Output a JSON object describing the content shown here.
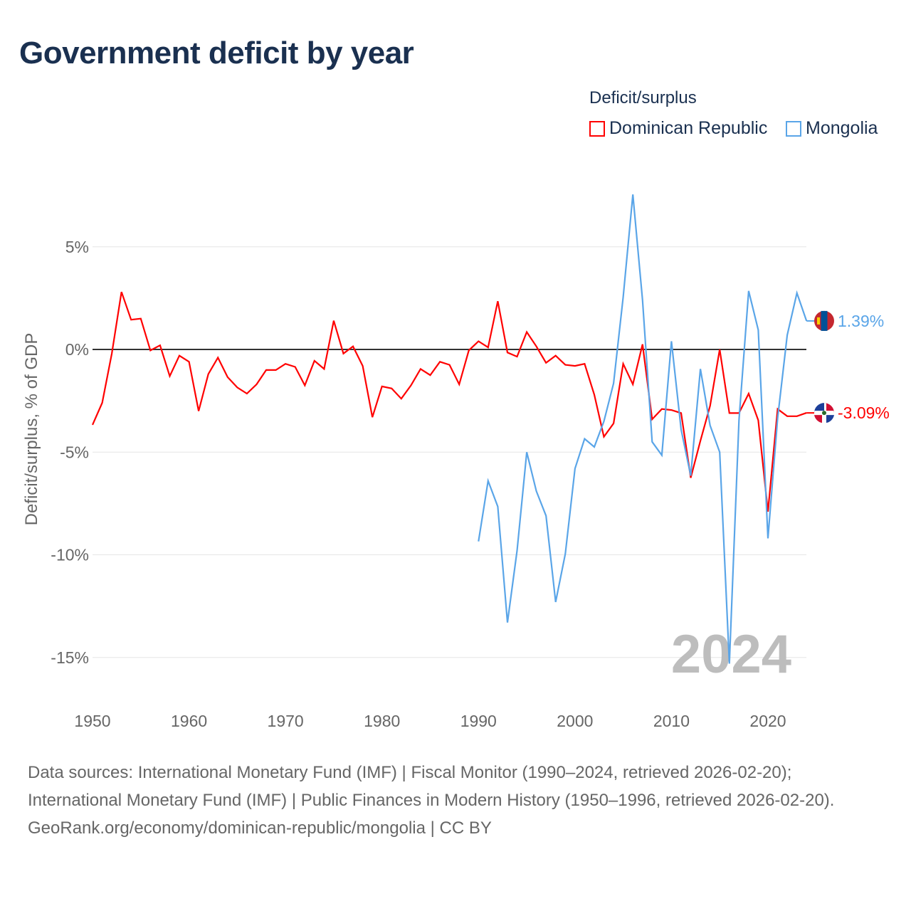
{
  "title": "Government deficit by year",
  "legend": {
    "title": "Deficit/surplus",
    "items": [
      {
        "label": "Dominican Republic",
        "color": "#ff0000"
      },
      {
        "label": "Mongolia",
        "color": "#5aa5e8"
      }
    ]
  },
  "chart_data": {
    "type": "line",
    "ylabel": "Deficit/surplus, % of GDP",
    "xlabel": "",
    "xlim": [
      1950,
      2024
    ],
    "ylim": [
      -17,
      8
    ],
    "x_ticks": [
      1950,
      1960,
      1970,
      1980,
      1990,
      2000,
      2010,
      2020
    ],
    "x_tick_labels": [
      "1950",
      "1960",
      "1970",
      "1980",
      "1990",
      "2000",
      "2010",
      "2020"
    ],
    "y_ticks": [
      5,
      0,
      -5,
      -10,
      -15
    ],
    "y_tick_labels": [
      "5%",
      "0%",
      "-5%",
      "-10%",
      "-15%"
    ],
    "grid": true,
    "year_watermark": "2024",
    "series": [
      {
        "name": "Dominican Republic",
        "color": "#ff0000",
        "end_label": "-3.09%",
        "start_year": 1950,
        "values": [
          -3.67,
          -2.6,
          -0.2,
          2.8,
          1.45,
          1.5,
          -0.05,
          0.2,
          -1.3,
          -0.3,
          -0.6,
          -3.0,
          -1.2,
          -0.4,
          -1.35,
          -1.85,
          -2.15,
          -1.7,
          -1.0,
          -1.0,
          -0.7,
          -0.85,
          -1.75,
          -0.55,
          -0.95,
          1.4,
          -0.2,
          0.15,
          -0.8,
          -3.3,
          -1.8,
          -1.9,
          -2.4,
          -1.75,
          -0.95,
          -1.25,
          -0.6,
          -0.75,
          -1.7,
          -0.05,
          0.4,
          0.1,
          2.35,
          -0.15,
          -0.35,
          0.85,
          0.15,
          -0.65,
          -0.3,
          -0.75,
          -0.8,
          -0.7,
          -2.2,
          -4.25,
          -3.6,
          -0.7,
          -1.7,
          0.25,
          -3.4,
          -2.9,
          -2.95,
          -3.1,
          -6.25,
          -4.45,
          -2.75,
          0.0,
          -3.1,
          -3.1,
          -2.15,
          -3.45,
          -7.9,
          -2.9,
          -3.25,
          -3.25,
          -3.09
        ]
      },
      {
        "name": "Mongolia",
        "color": "#5aa5e8",
        "end_label": "1.39%",
        "start_year": 1990,
        "values": [
          -9.35,
          -6.4,
          -7.65,
          -13.3,
          -9.8,
          -5.0,
          -6.9,
          -8.1,
          -12.3,
          -9.95,
          -5.8,
          -4.35,
          -4.75,
          -3.5,
          -1.65,
          2.55,
          7.55,
          2.4,
          -4.5,
          -5.15,
          0.4,
          -3.9,
          -6.15,
          -0.95,
          -3.7,
          -5.0,
          -15.3,
          -3.45,
          2.85,
          0.95,
          -9.2,
          -3.35,
          0.7,
          2.75,
          1.39
        ]
      }
    ]
  },
  "footer": {
    "sources": "Data sources: International Monetary Fund (IMF) | Fiscal Monitor (1990–2024, retrieved 2026-02-20); International Monetary Fund (IMF) | Public Finances in Modern History (1950–1996, retrieved 2026-02-20).",
    "credit": "GeoRank.org/economy/dominican-republic/mongolia | CC BY"
  }
}
